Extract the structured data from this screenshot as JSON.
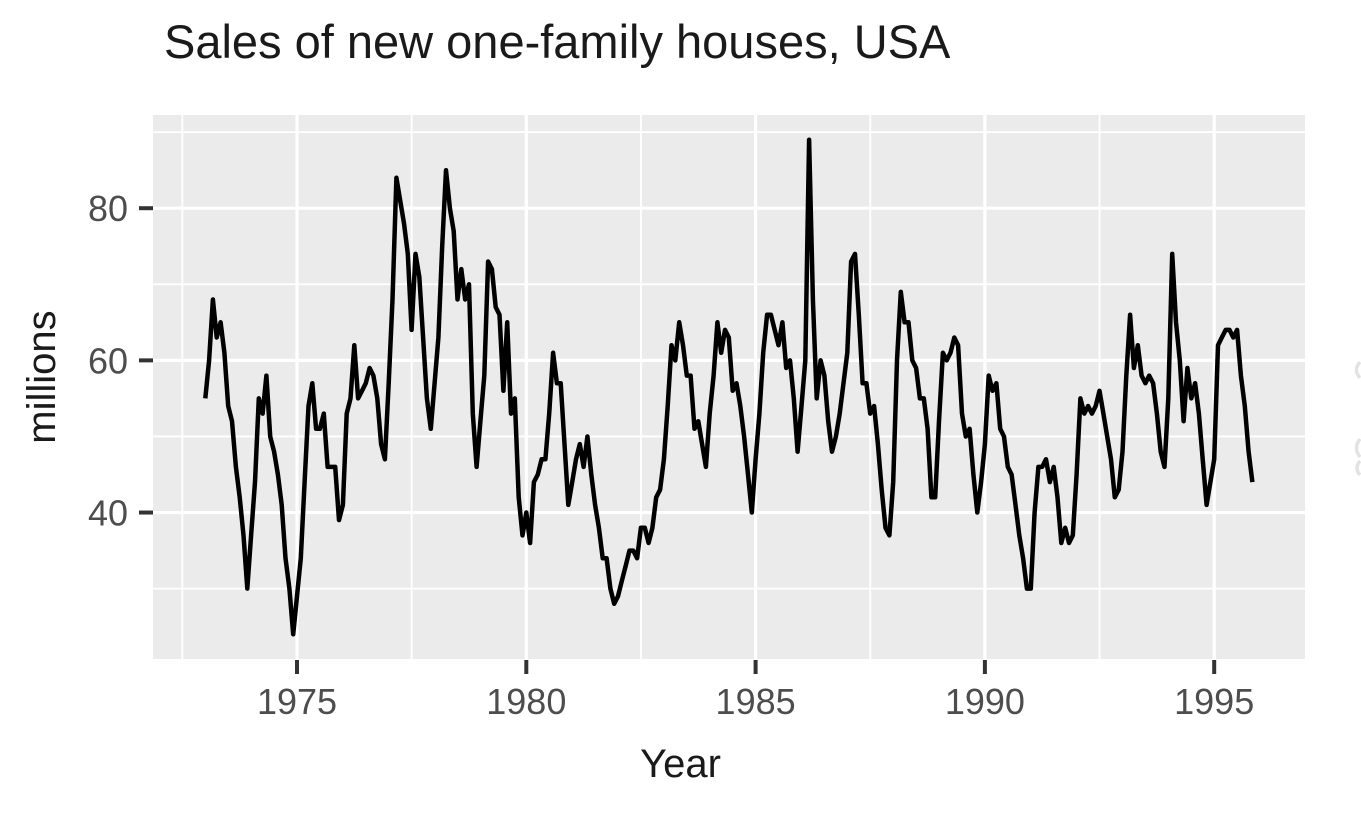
{
  "page": {
    "background_color": "#ffffff"
  },
  "chart_data": {
    "type": "line",
    "title": "Sales of new one-family houses, USA",
    "xlabel": "Year",
    "ylabel": "millions",
    "legend": "none",
    "grid": "major+minor",
    "x_start_year": 1973,
    "x_frequency": "monthly",
    "x_end_label": "Nov 1995",
    "xticks": [
      1975,
      1980,
      1985,
      1990,
      1995
    ],
    "yticks": [
      40,
      60,
      80
    ],
    "xlim": [
      1971.86,
      1996.98
    ],
    "ylim": [
      20.75,
      92.25
    ],
    "x_minor_step": 2.5,
    "y_minor_step": 10,
    "values": [
      55,
      60,
      68,
      63,
      65,
      61,
      54,
      52,
      46,
      42,
      37,
      30,
      37,
      44,
      55,
      53,
      58,
      50,
      48,
      45,
      41,
      34,
      30,
      24,
      29,
      34,
      44,
      54,
      57,
      51,
      51,
      53,
      46,
      46,
      46,
      39,
      41,
      53,
      55,
      62,
      55,
      56,
      57,
      59,
      58,
      55,
      49,
      47,
      57,
      68,
      84,
      81,
      78,
      74,
      64,
      74,
      71,
      63,
      55,
      51,
      57,
      63,
      75,
      85,
      80,
      77,
      68,
      72,
      68,
      70,
      53,
      46,
      52,
      58,
      73,
      72,
      67,
      66,
      56,
      65,
      53,
      55,
      42,
      37,
      40,
      36,
      44,
      45,
      47,
      47,
      53,
      61,
      57,
      57,
      49,
      41,
      44,
      47,
      49,
      46,
      50,
      45,
      41,
      38,
      34,
      34,
      30,
      28,
      29,
      31,
      33,
      35,
      35,
      34,
      38,
      38,
      36,
      38,
      42,
      43,
      47,
      54,
      62,
      60,
      65,
      62,
      58,
      58,
      51,
      52,
      49,
      46,
      53,
      58,
      65,
      61,
      64,
      63,
      56,
      57,
      54,
      50,
      45,
      40,
      47,
      53,
      61,
      66,
      66,
      64,
      62,
      65,
      59,
      60,
      55,
      48,
      54,
      60,
      89,
      68,
      55,
      60,
      58,
      52,
      48,
      50,
      53,
      57,
      61,
      73,
      74,
      66,
      57,
      57,
      53,
      54,
      49,
      43,
      38,
      37,
      44,
      60,
      69,
      65,
      65,
      60,
      59,
      55,
      55,
      51,
      42,
      42,
      52,
      61,
      60,
      61,
      63,
      62,
      53,
      50,
      51,
      45,
      40,
      44,
      49,
      58,
      56,
      57,
      51,
      50,
      46,
      45,
      41,
      37,
      34,
      30,
      30,
      40,
      46,
      46,
      47,
      44,
      46,
      42,
      36,
      38,
      36,
      37,
      45,
      55,
      53,
      54,
      53,
      54,
      56,
      53,
      50,
      47,
      42,
      43,
      48,
      58,
      66,
      59,
      62,
      58,
      57,
      58,
      57,
      53,
      48,
      46,
      55,
      74,
      65,
      60,
      52,
      59,
      55,
      57,
      53,
      47,
      41,
      44,
      47,
      62,
      63,
      64,
      64,
      63,
      64,
      58,
      54,
      48,
      44
    ],
    "styles": {
      "panel_bg": "#ebebeb",
      "grid_color": "#ffffff",
      "line_color": "#000000",
      "tick_mark_color": "#333333",
      "tick_label_color": "#4d4d4d",
      "title_color": "#1a1a1a",
      "axis_title_color": "#1a1a1a",
      "artifact_color": "#e3e3e3"
    },
    "right_edge_artifact": "faint cropped glyph fragments at right image edge"
  }
}
